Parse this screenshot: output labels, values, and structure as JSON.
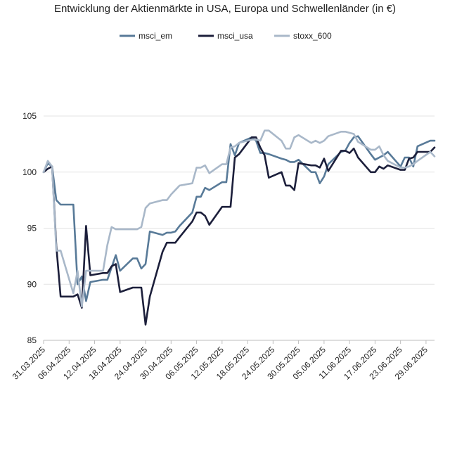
{
  "chart_data": {
    "type": "line",
    "title": "Entwicklung der Aktienmärkte in USA, Europa und Schwellenländer (in €)",
    "xlabel": "",
    "ylabel": "",
    "ylim": [
      85,
      105
    ],
    "yticks": [
      85,
      90,
      95,
      100,
      105
    ],
    "grid": true,
    "legend_position": "top",
    "x_tick_labels": [
      "31.03.2025",
      "06.04.2025",
      "12.04.2025",
      "18.04.2025",
      "24.04.2025",
      "30.04.2025",
      "06.05.2025",
      "12.05.2025",
      "18.05.2025",
      "24.05.2025",
      "30.05.2025",
      "05.06.2025",
      "11.06.2025",
      "17.06.2025",
      "23.06.2025",
      "29.06.2025"
    ],
    "x_start": "2025-03-31",
    "x_end": "2025-07-01",
    "series": [
      {
        "name": "msci_em",
        "color": "#587a98",
        "points": [
          [
            "2025-03-31",
            100.0
          ],
          [
            "2025-04-01",
            100.8
          ],
          [
            "2025-04-02",
            100.5
          ],
          [
            "2025-04-03",
            97.5
          ],
          [
            "2025-04-04",
            97.1
          ],
          [
            "2025-04-07",
            97.1
          ],
          [
            "2025-04-08",
            90.0
          ],
          [
            "2025-04-09",
            90.7
          ],
          [
            "2025-04-10",
            88.5
          ],
          [
            "2025-04-11",
            90.2
          ],
          [
            "2025-04-14",
            90.4
          ],
          [
            "2025-04-15",
            90.4
          ],
          [
            "2025-04-16",
            91.5
          ],
          [
            "2025-04-17",
            92.6
          ],
          [
            "2025-04-18",
            91.2
          ],
          [
            "2025-04-21",
            92.3
          ],
          [
            "2025-04-22",
            92.3
          ],
          [
            "2025-04-23",
            91.4
          ],
          [
            "2025-04-24",
            91.8
          ],
          [
            "2025-04-25",
            94.7
          ],
          [
            "2025-04-28",
            94.4
          ],
          [
            "2025-04-29",
            94.6
          ],
          [
            "2025-04-30",
            94.6
          ],
          [
            "2025-05-01",
            94.7
          ],
          [
            "2025-05-02",
            95.2
          ],
          [
            "2025-05-05",
            96.4
          ],
          [
            "2025-05-06",
            97.8
          ],
          [
            "2025-05-07",
            97.8
          ],
          [
            "2025-05-08",
            98.6
          ],
          [
            "2025-05-09",
            98.4
          ],
          [
            "2025-05-12",
            99.1
          ],
          [
            "2025-05-13",
            99.1
          ],
          [
            "2025-05-14",
            102.5
          ],
          [
            "2025-05-15",
            101.5
          ],
          [
            "2025-05-16",
            102.6
          ],
          [
            "2025-05-19",
            103.1
          ],
          [
            "2025-05-20",
            102.8
          ],
          [
            "2025-05-21",
            101.7
          ],
          [
            "2025-05-22",
            101.7
          ],
          [
            "2025-05-23",
            101.6
          ],
          [
            "2025-05-26",
            101.2
          ],
          [
            "2025-05-27",
            101.1
          ],
          [
            "2025-05-28",
            100.9
          ],
          [
            "2025-05-29",
            100.9
          ],
          [
            "2025-05-30",
            101.1
          ],
          [
            "2025-06-02",
            100.0
          ],
          [
            "2025-06-03",
            100.0
          ],
          [
            "2025-06-04",
            99.0
          ],
          [
            "2025-06-05",
            99.6
          ],
          [
            "2025-06-06",
            100.7
          ],
          [
            "2025-06-09",
            101.8
          ],
          [
            "2025-06-10",
            101.9
          ],
          [
            "2025-06-11",
            102.6
          ],
          [
            "2025-06-12",
            103.1
          ],
          [
            "2025-06-13",
            103.2
          ],
          [
            "2025-06-16",
            101.6
          ],
          [
            "2025-06-17",
            101.1
          ],
          [
            "2025-06-18",
            101.3
          ],
          [
            "2025-06-19",
            101.5
          ],
          [
            "2025-06-20",
            101.8
          ],
          [
            "2025-06-23",
            100.5
          ],
          [
            "2025-06-24",
            101.3
          ],
          [
            "2025-06-25",
            101.3
          ],
          [
            "2025-06-26",
            100.5
          ],
          [
            "2025-06-27",
            102.3
          ],
          [
            "2025-06-30",
            102.8
          ],
          [
            "2025-07-01",
            102.8
          ]
        ]
      },
      {
        "name": "msci_usa",
        "color": "#1c1f3b",
        "points": [
          [
            "2025-03-31",
            100.0
          ],
          [
            "2025-04-01",
            100.3
          ],
          [
            "2025-04-02",
            100.5
          ],
          [
            "2025-04-03",
            93.4
          ],
          [
            "2025-04-04",
            88.9
          ],
          [
            "2025-04-07",
            88.9
          ],
          [
            "2025-04-08",
            89.1
          ],
          [
            "2025-04-09",
            87.9
          ],
          [
            "2025-04-10",
            95.2
          ],
          [
            "2025-04-11",
            90.8
          ],
          [
            "2025-04-14",
            91.0
          ],
          [
            "2025-04-15",
            91.0
          ],
          [
            "2025-04-16",
            91.6
          ],
          [
            "2025-04-17",
            91.8
          ],
          [
            "2025-04-18",
            89.3
          ],
          [
            "2025-04-21",
            89.7
          ],
          [
            "2025-04-22",
            89.7
          ],
          [
            "2025-04-23",
            89.7
          ],
          [
            "2025-04-24",
            86.4
          ],
          [
            "2025-04-25",
            88.9
          ],
          [
            "2025-04-28",
            92.9
          ],
          [
            "2025-04-29",
            93.7
          ],
          [
            "2025-04-30",
            93.7
          ],
          [
            "2025-05-01",
            93.7
          ],
          [
            "2025-05-02",
            94.2
          ],
          [
            "2025-05-05",
            95.6
          ],
          [
            "2025-05-06",
            96.4
          ],
          [
            "2025-05-07",
            96.4
          ],
          [
            "2025-05-08",
            96.1
          ],
          [
            "2025-05-09",
            95.3
          ],
          [
            "2025-05-12",
            96.9
          ],
          [
            "2025-05-13",
            96.9
          ],
          [
            "2025-05-14",
            96.9
          ],
          [
            "2025-05-15",
            101.3
          ],
          [
            "2025-05-16",
            101.6
          ],
          [
            "2025-05-19",
            103.1
          ],
          [
            "2025-05-20",
            103.1
          ],
          [
            "2025-05-21",
            102.2
          ],
          [
            "2025-05-22",
            101.5
          ],
          [
            "2025-05-23",
            99.5
          ],
          [
            "2025-05-26",
            100.0
          ],
          [
            "2025-05-27",
            98.8
          ],
          [
            "2025-05-28",
            98.8
          ],
          [
            "2025-05-29",
            98.4
          ],
          [
            "2025-05-30",
            100.8
          ],
          [
            "2025-06-02",
            100.6
          ],
          [
            "2025-06-03",
            100.6
          ],
          [
            "2025-06-04",
            100.4
          ],
          [
            "2025-06-05",
            101.2
          ],
          [
            "2025-06-06",
            100.1
          ],
          [
            "2025-06-09",
            101.9
          ],
          [
            "2025-06-10",
            101.9
          ],
          [
            "2025-06-11",
            101.7
          ],
          [
            "2025-06-12",
            102.1
          ],
          [
            "2025-06-13",
            101.3
          ],
          [
            "2025-06-16",
            100.0
          ],
          [
            "2025-06-17",
            100.0
          ],
          [
            "2025-06-18",
            100.5
          ],
          [
            "2025-06-19",
            100.3
          ],
          [
            "2025-06-20",
            100.6
          ],
          [
            "2025-06-23",
            100.2
          ],
          [
            "2025-06-24",
            100.2
          ],
          [
            "2025-06-25",
            101.2
          ],
          [
            "2025-06-26",
            101.3
          ],
          [
            "2025-06-27",
            101.8
          ],
          [
            "2025-06-30",
            101.8
          ],
          [
            "2025-07-01",
            102.2
          ]
        ]
      },
      {
        "name": "stoxx_600",
        "color": "#a9b8c9",
        "points": [
          [
            "2025-03-31",
            100.0
          ],
          [
            "2025-04-01",
            101.0
          ],
          [
            "2025-04-02",
            100.5
          ],
          [
            "2025-04-03",
            93.0
          ],
          [
            "2025-04-04",
            93.0
          ],
          [
            "2025-04-07",
            89.2
          ],
          [
            "2025-04-08",
            91.2
          ],
          [
            "2025-04-09",
            88.0
          ],
          [
            "2025-04-10",
            91.2
          ],
          [
            "2025-04-11",
            91.2
          ],
          [
            "2025-04-14",
            91.2
          ],
          [
            "2025-04-15",
            93.5
          ],
          [
            "2025-04-16",
            95.1
          ],
          [
            "2025-04-17",
            94.9
          ],
          [
            "2025-04-18",
            94.9
          ],
          [
            "2025-04-21",
            94.9
          ],
          [
            "2025-04-22",
            94.9
          ],
          [
            "2025-04-23",
            95.1
          ],
          [
            "2025-04-24",
            96.8
          ],
          [
            "2025-04-25",
            97.2
          ],
          [
            "2025-04-28",
            97.5
          ],
          [
            "2025-04-29",
            97.5
          ],
          [
            "2025-04-30",
            98.0
          ],
          [
            "2025-05-01",
            98.4
          ],
          [
            "2025-05-02",
            98.8
          ],
          [
            "2025-05-05",
            99.0
          ],
          [
            "2025-05-06",
            100.4
          ],
          [
            "2025-05-07",
            100.4
          ],
          [
            "2025-05-08",
            100.6
          ],
          [
            "2025-05-09",
            99.9
          ],
          [
            "2025-05-12",
            100.7
          ],
          [
            "2025-05-13",
            100.7
          ],
          [
            "2025-05-14",
            102.2
          ],
          [
            "2025-05-15",
            102.3
          ],
          [
            "2025-05-16",
            102.6
          ],
          [
            "2025-05-19",
            102.9
          ],
          [
            "2025-05-20",
            102.9
          ],
          [
            "2025-05-21",
            102.8
          ],
          [
            "2025-05-22",
            103.7
          ],
          [
            "2025-05-23",
            103.7
          ],
          [
            "2025-05-26",
            102.8
          ],
          [
            "2025-05-27",
            102.1
          ],
          [
            "2025-05-28",
            102.1
          ],
          [
            "2025-05-29",
            103.1
          ],
          [
            "2025-05-30",
            103.3
          ],
          [
            "2025-06-02",
            102.6
          ],
          [
            "2025-06-03",
            102.8
          ],
          [
            "2025-06-04",
            102.6
          ],
          [
            "2025-06-05",
            102.8
          ],
          [
            "2025-06-06",
            103.2
          ],
          [
            "2025-06-09",
            103.6
          ],
          [
            "2025-06-10",
            103.6
          ],
          [
            "2025-06-11",
            103.5
          ],
          [
            "2025-06-12",
            103.4
          ],
          [
            "2025-06-13",
            102.7
          ],
          [
            "2025-06-16",
            102.0
          ],
          [
            "2025-06-17",
            102.0
          ],
          [
            "2025-06-18",
            102.3
          ],
          [
            "2025-06-19",
            101.5
          ],
          [
            "2025-06-20",
            101.0
          ],
          [
            "2025-06-23",
            100.4
          ],
          [
            "2025-06-24",
            100.4
          ],
          [
            "2025-06-25",
            100.5
          ],
          [
            "2025-06-26",
            100.7
          ],
          [
            "2025-06-27",
            101.0
          ],
          [
            "2025-06-30",
            101.8
          ],
          [
            "2025-07-01",
            101.4
          ]
        ]
      }
    ]
  }
}
